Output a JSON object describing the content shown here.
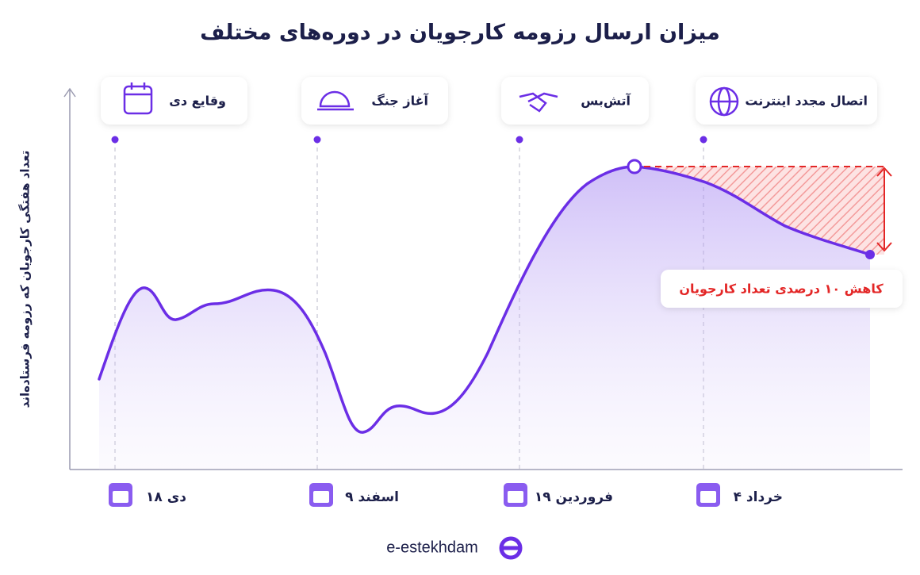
{
  "title": "میزان ارسال رزومه کارجویان در دوره‌های مختلف",
  "y_axis_label": "تعداد هفتگی کارجویان که رزومه فرستاده‌اند",
  "events": [
    {
      "label": "وقایع دی"
    },
    {
      "label": "آغاز جنگ"
    },
    {
      "label": "آتش‌بس"
    },
    {
      "label": "اتصال مجدد اینترنت"
    }
  ],
  "dates": [
    "۱۸ دی",
    "۹ اسفند",
    "۱۹ فروردین",
    "۴ خرداد"
  ],
  "annotation": "کاهش ۱۰ درصدی تعداد کارجویان",
  "logo": "e-estekhdam"
}
